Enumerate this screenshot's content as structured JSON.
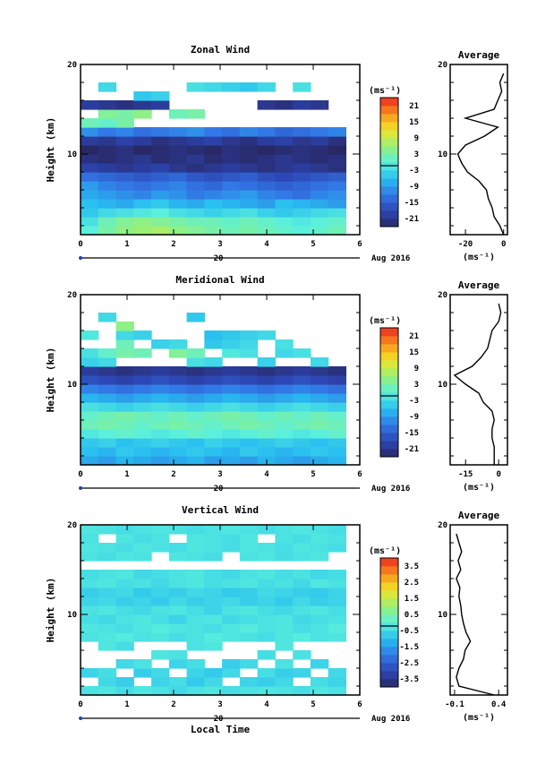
{
  "chart_data": [
    {
      "type": "heatmap",
      "title": "Zonal Wind",
      "ylabel": "Height (km)",
      "x_ticks": [
        "0",
        "1",
        "2",
        "3",
        "4",
        "5",
        "6"
      ],
      "y_ticks": [
        "10",
        "20"
      ],
      "xlim": [
        0,
        6
      ],
      "ylim": [
        1,
        20
      ],
      "data_end_hour": 5.7,
      "date_day": "20",
      "date_month": "Aug 2016",
      "colorbar": {
        "unit": "(ms⁻¹)",
        "ticks": [
          "21",
          "15",
          "9",
          "3",
          "-3",
          "-9",
          "-15",
          "-21"
        ],
        "range": [
          -24,
          24
        ]
      },
      "profile": {
        "title": "Average",
        "xlabel": "(ms⁻¹)",
        "x_ticks": [
          "-20",
          "0"
        ],
        "xlim": [
          -28,
          2
        ],
        "y_ticks": [
          "10",
          "20"
        ],
        "heights": [
          1,
          2,
          3,
          4,
          5,
          6,
          7,
          8,
          9,
          10,
          11,
          12,
          13,
          14,
          15,
          16,
          17,
          18,
          19
        ],
        "values": [
          0,
          -2,
          -5,
          -6,
          -8,
          -9,
          -13,
          -19,
          -22,
          -24,
          -20,
          -10,
          -3,
          -20,
          -5,
          -3,
          -1,
          -2,
          0
        ]
      },
      "grid": [
        [
          0,
          3,
          5,
          6,
          7,
          5,
          4,
          3,
          2,
          3,
          2,
          1,
          0,
          1,
          2
        ],
        [
          -2,
          2,
          4,
          5,
          4,
          3,
          2,
          2,
          1,
          2,
          1,
          0,
          -1,
          0,
          1
        ],
        [
          -5,
          -3,
          -2,
          -1,
          0,
          -2,
          -3,
          -4,
          -3,
          -2,
          -4,
          -5,
          -4,
          -3,
          -2
        ],
        [
          -6,
          -7,
          -8,
          -6,
          -5,
          -7,
          -8,
          -6,
          -7,
          -8,
          -9,
          -6,
          -7,
          -8,
          -9
        ],
        [
          -8,
          -9,
          -10,
          -11,
          -9,
          -10,
          -12,
          -11,
          -10,
          -9,
          -11,
          -12,
          -13,
          -11,
          -10
        ],
        [
          -9,
          -11,
          -12,
          -13,
          -12,
          -11,
          -13,
          -14,
          -12,
          -13,
          -14,
          -15,
          -14,
          -13,
          -12
        ],
        [
          -13,
          -14,
          -15,
          -16,
          -15,
          -14,
          -16,
          -17,
          -16,
          -15,
          -17,
          -18,
          -17,
          -16,
          -15
        ],
        [
          -19,
          -20,
          -21,
          -20,
          -19,
          -21,
          -22,
          -21,
          -20,
          -21,
          -22,
          -21,
          -20,
          -21,
          -22
        ],
        [
          -22,
          -23,
          -22,
          -21,
          -23,
          -22,
          -21,
          -23,
          -22,
          -23,
          -22,
          -21,
          -22,
          -23,
          -22
        ],
        [
          -24,
          -23,
          -22,
          -24,
          -23,
          -22,
          -23,
          -24,
          -22,
          -23,
          -24,
          -23,
          -22,
          -23,
          -24
        ],
        [
          -20,
          -21,
          -19,
          -20,
          -22,
          -21,
          -20,
          -19,
          -21,
          -22,
          -20,
          -19,
          -21,
          -20,
          -22
        ],
        [
          -10,
          -12,
          -11,
          -13,
          -12,
          -11,
          -10,
          -12,
          -13,
          -11,
          -12,
          -14,
          -13,
          -12,
          -11
        ],
        [
          2,
          1,
          3,
          null,
          null,
          null,
          null,
          null,
          null,
          null,
          null,
          null,
          null,
          null,
          null
        ],
        [
          null,
          4,
          3,
          5,
          null,
          2,
          3,
          null,
          null,
          null,
          null,
          null,
          null,
          null,
          null
        ],
        [
          -20,
          -21,
          -22,
          -21,
          -20,
          null,
          null,
          null,
          null,
          null,
          -21,
          -22,
          -20,
          -21,
          null
        ],
        [
          null,
          null,
          null,
          -5,
          -4,
          null,
          null,
          null,
          null,
          null,
          null,
          null,
          null,
          null,
          null
        ],
        [
          null,
          -3,
          null,
          null,
          null,
          null,
          -2,
          -3,
          -4,
          -5,
          -3,
          null,
          -2,
          null,
          null
        ],
        [
          null,
          null,
          null,
          null,
          null,
          null,
          null,
          null,
          null,
          null,
          null,
          null,
          null,
          null,
          null
        ],
        [
          null,
          null,
          null,
          null,
          null,
          null,
          null,
          null,
          null,
          null,
          null,
          null,
          null,
          null,
          null
        ]
      ]
    },
    {
      "type": "heatmap",
      "title": "Meridional Wind",
      "ylabel": "Height (km)",
      "x_ticks": [
        "0",
        "1",
        "2",
        "3",
        "4",
        "5",
        "6"
      ],
      "y_ticks": [
        "10",
        "20"
      ],
      "xlim": [
        0,
        6
      ],
      "ylim": [
        1,
        20
      ],
      "data_end_hour": 5.7,
      "date_day": "20",
      "date_month": "Aug 2016",
      "colorbar": {
        "unit": "(ms⁻¹)",
        "ticks": [
          "21",
          "15",
          "9",
          "3",
          "-3",
          "-9",
          "-15",
          "-21"
        ],
        "range": [
          -24,
          24
        ]
      },
      "profile": {
        "title": "Average",
        "xlabel": "(ms⁻¹)",
        "x_ticks": [
          "-15",
          "0"
        ],
        "xlim": [
          -22,
          4
        ],
        "y_ticks": [
          "10",
          "20"
        ],
        "heights": [
          1,
          2,
          3,
          4,
          5,
          6,
          7,
          8,
          9,
          10,
          11,
          12,
          13,
          14,
          15,
          16,
          17,
          18,
          19
        ],
        "values": [
          -2,
          -2,
          -2,
          -3,
          -3,
          -2,
          -3,
          -7,
          -9,
          -15,
          -20,
          -12,
          -8,
          -5,
          -4,
          -3,
          0,
          1,
          0
        ]
      },
      "grid": [
        [
          -8,
          -9,
          -7,
          -8,
          -9,
          -8,
          -7,
          -9,
          -8,
          -9,
          -7,
          -8,
          -9,
          -8,
          -7
        ],
        [
          -6,
          -7,
          -5,
          -6,
          -7,
          -6,
          -5,
          -6,
          -7,
          -5,
          -6,
          -7,
          -6,
          -5,
          -6
        ],
        [
          -5,
          -4,
          -6,
          -5,
          -4,
          -5,
          -6,
          -4,
          -5,
          -6,
          -5,
          -4,
          -5,
          -6,
          -5
        ],
        [
          -1,
          0,
          1,
          0,
          -1,
          0,
          1,
          0,
          -1,
          0,
          1,
          0,
          -1,
          0,
          1
        ],
        [
          2,
          3,
          2,
          1,
          2,
          3,
          2,
          1,
          2,
          3,
          2,
          1,
          2,
          3,
          2
        ],
        [
          1,
          2,
          3,
          2,
          1,
          2,
          1,
          2,
          3,
          2,
          1,
          2,
          1,
          2,
          1
        ],
        [
          -2,
          -3,
          -4,
          -3,
          -2,
          -3,
          -4,
          -3,
          -2,
          -3,
          -4,
          -3,
          -2,
          -3,
          -4
        ],
        [
          -7,
          -8,
          -9,
          -8,
          -7,
          -8,
          -9,
          -8,
          -7,
          -8,
          -9,
          -8,
          -7,
          -8,
          -9
        ],
        [
          -11,
          -12,
          -13,
          -12,
          -11,
          -12,
          -13,
          -12,
          -11,
          -12,
          -13,
          -12,
          -11,
          -12,
          -13
        ],
        [
          -17,
          -18,
          -19,
          -18,
          -17,
          -18,
          -19,
          -18,
          -17,
          -18,
          -19,
          -18,
          -17,
          -18,
          -19
        ],
        [
          -20,
          -21,
          -22,
          -21,
          -20,
          -21,
          -22,
          -21,
          -20,
          -21,
          -22,
          -21,
          -20,
          -21,
          -22
        ],
        [
          -4,
          -3,
          null,
          null,
          null,
          null,
          -2,
          -3,
          null,
          null,
          -4,
          null,
          null,
          -3,
          null
        ],
        [
          -2,
          1,
          3,
          2,
          null,
          4,
          2,
          null,
          -1,
          -2,
          null,
          -3,
          -2,
          null,
          null
        ],
        [
          null,
          null,
          2,
          null,
          -4,
          -3,
          null,
          -5,
          -4,
          -3,
          null,
          -2,
          null,
          null,
          null
        ],
        [
          -1,
          null,
          -3,
          -4,
          null,
          null,
          null,
          -6,
          -5,
          -4,
          -3,
          null,
          null,
          null,
          null
        ],
        [
          null,
          null,
          5,
          null,
          null,
          null,
          null,
          null,
          null,
          null,
          null,
          null,
          null,
          null,
          null
        ],
        [
          null,
          -3,
          null,
          null,
          null,
          null,
          -5,
          null,
          null,
          null,
          null,
          null,
          null,
          null,
          null
        ],
        [
          null,
          null,
          null,
          null,
          null,
          null,
          null,
          null,
          null,
          null,
          null,
          null,
          null,
          null,
          null
        ],
        [
          null,
          null,
          null,
          null,
          null,
          null,
          null,
          null,
          null,
          null,
          null,
          null,
          null,
          null,
          null
        ]
      ]
    },
    {
      "type": "heatmap",
      "title": "Vertical Wind",
      "ylabel": "Height (km)",
      "xlabel": "Local Time",
      "x_ticks": [
        "0",
        "1",
        "2",
        "3",
        "4",
        "5",
        "6"
      ],
      "y_ticks": [
        "10",
        "20"
      ],
      "xlim": [
        0,
        6
      ],
      "ylim": [
        1,
        20
      ],
      "data_end_hour": 5.7,
      "date_day": "20",
      "date_month": "Aug 2016",
      "colorbar": {
        "unit": "(ms⁻¹)",
        "ticks": [
          "3.5",
          "2.5",
          "1.5",
          "0.5",
          "-0.5",
          "-1.5",
          "-2.5",
          "-3.5"
        ],
        "range": [
          -4,
          4
        ]
      },
      "profile": {
        "title": "Average",
        "xlabel": "(ms⁻¹)",
        "x_ticks": [
          "-0.1",
          "0.4"
        ],
        "xlim": [
          -0.15,
          0.5
        ],
        "y_ticks": [
          "10",
          "20"
        ],
        "heights": [
          1,
          2,
          3,
          4,
          5,
          6,
          7,
          8,
          9,
          10,
          11,
          12,
          13,
          14,
          15,
          16,
          17,
          18,
          19
        ],
        "values": [
          0.35,
          -0.05,
          -0.08,
          -0.05,
          0.0,
          0.02,
          0.08,
          0.03,
          0.0,
          -0.02,
          -0.03,
          -0.05,
          -0.04,
          -0.08,
          -0.03,
          -0.06,
          -0.02,
          -0.05,
          -0.08
        ]
      },
      "grid": [
        [
          -0.3,
          -0.2,
          -0.4,
          -0.2,
          -0.3,
          -0.5,
          -0.3,
          -0.2,
          -0.4,
          -0.3,
          -0.2,
          -0.3,
          -0.4,
          -0.2,
          -0.3
        ],
        [
          null,
          -0.5,
          -0.7,
          null,
          -0.6,
          -0.4,
          -0.8,
          -0.5,
          null,
          -0.6,
          -0.7,
          -0.5,
          null,
          -0.4,
          -0.6
        ],
        [
          -0.6,
          -0.4,
          null,
          -0.7,
          -0.5,
          null,
          -0.6,
          -0.8,
          -0.5,
          null,
          -0.4,
          -0.7,
          -0.6,
          null,
          -0.5
        ],
        [
          null,
          null,
          -0.5,
          -0.3,
          null,
          -0.6,
          -0.4,
          null,
          -0.7,
          -0.5,
          null,
          -0.3,
          null,
          -0.6,
          null
        ],
        [
          null,
          null,
          null,
          null,
          -0.2,
          -0.3,
          null,
          null,
          null,
          null,
          -0.4,
          null,
          -0.3,
          null,
          null
        ],
        [
          null,
          -0.2,
          -0.4,
          null,
          null,
          null,
          -0.3,
          -0.2,
          null,
          null,
          null,
          -0.2,
          null,
          null,
          null
        ],
        [
          -0.3,
          -0.2,
          -0.1,
          -0.3,
          -0.2,
          -0.4,
          -0.3,
          -0.1,
          -0.2,
          -0.3,
          -0.4,
          -0.2,
          -0.1,
          -0.3,
          -0.2
        ],
        [
          -0.2,
          -0.3,
          -0.4,
          -0.2,
          -0.1,
          -0.2,
          -0.3,
          -0.4,
          -0.2,
          -0.1,
          -0.3,
          -0.2,
          -0.4,
          -0.3,
          -0.1
        ],
        [
          -0.4,
          -0.5,
          -0.3,
          -0.2,
          -0.4,
          -0.6,
          -0.3,
          -0.2,
          -0.5,
          -0.4,
          -0.3,
          -0.2,
          -0.5,
          -0.4,
          -0.3
        ],
        [
          -0.3,
          -0.2,
          -0.4,
          -0.5,
          -0.3,
          -0.2,
          -0.4,
          -0.6,
          -0.3,
          -0.2,
          -0.4,
          -0.5,
          -0.3,
          -0.2,
          -0.4
        ],
        [
          -0.6,
          -0.5,
          -0.7,
          -0.6,
          -0.8,
          -0.5,
          -0.7,
          -0.6,
          -0.5,
          -0.7,
          -0.6,
          -0.8,
          -0.5,
          -0.7,
          -0.6
        ],
        [
          -0.7,
          -0.6,
          -0.5,
          -0.8,
          -0.6,
          -0.7,
          -0.5,
          -0.6,
          -0.8,
          -0.7,
          -0.5,
          -0.6,
          -0.7,
          -0.8,
          -0.6
        ],
        [
          -0.3,
          -0.2,
          -0.4,
          -0.3,
          -0.5,
          -0.3,
          -0.2,
          -0.4,
          -0.3,
          -0.2,
          -0.4,
          -0.3,
          -0.5,
          -0.2,
          -0.3
        ],
        [
          -0.4,
          -0.3,
          -0.2,
          -0.5,
          -0.4,
          -0.3,
          -0.2,
          -0.4,
          -0.5,
          -0.3,
          -0.2,
          -0.4,
          -0.3,
          -0.5,
          -0.4
        ],
        [
          null,
          null,
          null,
          null,
          null,
          null,
          null,
          null,
          null,
          null,
          null,
          null,
          null,
          null,
          null
        ],
        [
          -0.3,
          -0.4,
          -0.2,
          -0.3,
          null,
          -0.2,
          -0.3,
          -0.4,
          null,
          -0.3,
          -0.2,
          -0.4,
          -0.3,
          -0.2,
          null
        ],
        [
          -0.2,
          -0.3,
          -0.4,
          -0.2,
          -0.3,
          -0.4,
          -0.2,
          -0.3,
          -0.4,
          -0.2,
          -0.3,
          -0.4,
          -0.2,
          -0.3,
          -0.4
        ],
        [
          -0.3,
          null,
          -0.2,
          -0.4,
          -0.3,
          null,
          -0.2,
          -0.3,
          -0.4,
          -0.2,
          null,
          -0.3,
          -0.4,
          -0.2,
          -0.3
        ],
        [
          -0.2,
          -0.3,
          -0.4,
          -0.3,
          -0.2,
          -0.3,
          -0.4,
          -0.3,
          -0.2,
          -0.3,
          -0.4,
          -0.3,
          -0.2,
          -0.3,
          -0.4
        ]
      ]
    }
  ]
}
